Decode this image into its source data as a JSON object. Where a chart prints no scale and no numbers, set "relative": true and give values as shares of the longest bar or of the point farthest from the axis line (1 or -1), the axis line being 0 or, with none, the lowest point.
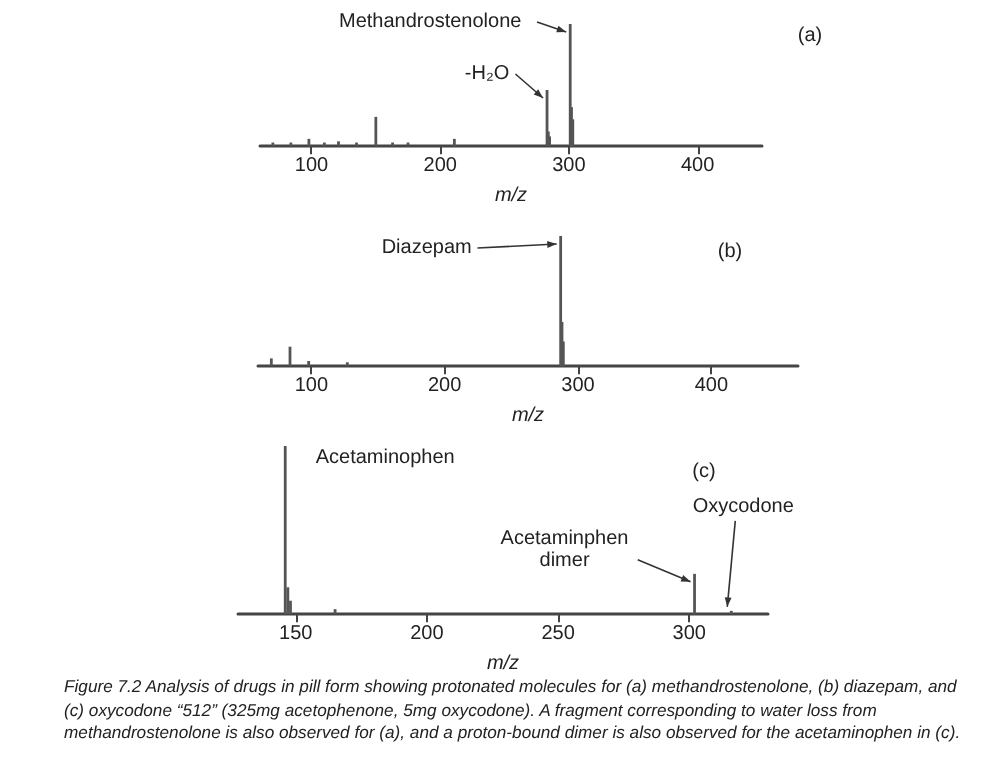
{
  "chart_data": [
    {
      "type": "bar",
      "relative": true,
      "xlabel": "m/z",
      "xlim": [
        60,
        450
      ],
      "xticks": [
        100,
        200,
        300,
        400
      ],
      "x": [
        70,
        84,
        98,
        110,
        121,
        135,
        150,
        163,
        175,
        211,
        283,
        284,
        285,
        301,
        302,
        303
      ],
      "values": [
        0.03,
        0.03,
        0.06,
        0.03,
        0.04,
        0.03,
        0.24,
        0.03,
        0.03,
        0.06,
        0.46,
        0.12,
        0.08,
        1,
        0.32,
        0.22
      ],
      "color": "#555555",
      "annotations": [
        "(a)",
        {
          "text": "Methandrostenolone",
          "x": 301,
          "y": 1
        },
        {
          "text": "-H₂O",
          "x": 283,
          "y": 0.46
        }
      ]
    },
    {
      "type": "bar",
      "relative": true,
      "xlabel": "m/z",
      "xlim": [
        60,
        465
      ],
      "xticks": [
        100,
        200,
        300,
        400
      ],
      "x": [
        70,
        84,
        98,
        127,
        287,
        288,
        289
      ],
      "values": [
        0.06,
        0.15,
        0.04,
        0.03,
        1,
        0.34,
        0.19
      ],
      "color": "#555555",
      "annotations": [
        "(b)",
        {
          "text": "Diazepam",
          "x": 287,
          "y": 1
        }
      ]
    },
    {
      "type": "bar",
      "relative": true,
      "xlabel": "m/z",
      "xlim": [
        128,
        330
      ],
      "xticks": [
        150,
        200,
        250,
        300
      ],
      "x": [
        146,
        147,
        148,
        165,
        302,
        316
      ],
      "values": [
        1,
        0.16,
        0.08,
        0.03,
        0.24,
        0.02
      ],
      "color": "#555555",
      "annotations": [
        "(c)",
        {
          "text": "Acetaminophen",
          "x": 146,
          "y": 1
        },
        {
          "text": "Acetaminphen\ndimer",
          "x": 302,
          "y": 0.24
        },
        {
          "text": "Oxycodone",
          "x": 316,
          "y": 0.02
        },
        "Figure 7.2  Analysis of drugs in pill form showing protonated molecules for (a) methandrostenolone, (b) diazepam, and (c) oxycodone “512” (325mg acetophenone, 5mg oxycodone). A fragment corresponding to water loss from methandrostenolone is also observed for (a), and a proton-bound dimer is also observed for the acetaminophen in (c)."
      ]
    }
  ]
}
